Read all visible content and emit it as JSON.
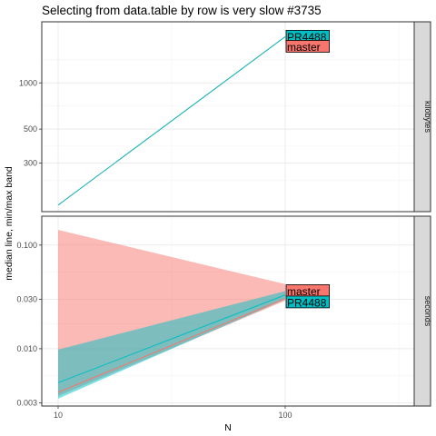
{
  "chart_data": {
    "type": "line",
    "title": "Selecting from data.table by row is very slow #3735",
    "xlabel": "N",
    "ylabel": "median line, min/max band",
    "x_scale": "log10",
    "xlim": [
      10,
      400
    ],
    "x_ticks": [
      10,
      100
    ],
    "x_tick_labels": [
      "10",
      "100"
    ],
    "grid": true,
    "legend": "direct labels",
    "colors": {
      "master": "#f8766d",
      "PR4488": "#00bfc4"
    },
    "panels": [
      {
        "strip_label": "kilobytes",
        "y_scale": "log10",
        "ylim": [
          145,
          2500
        ],
        "y_ticks": [
          300,
          500,
          1000
        ],
        "y_tick_labels": [
          "300",
          "500",
          "1000"
        ],
        "series": [
          {
            "name": "master",
            "x": [
              10,
              100
            ],
            "median": [
              160,
              2000
            ],
            "min": [
              160,
              2000
            ],
            "max": [
              160,
              2000
            ]
          },
          {
            "name": "PR4488",
            "x": [
              10,
              100
            ],
            "median": [
              160,
              2000
            ],
            "min": [
              160,
              2000
            ],
            "max": [
              160,
              2000
            ]
          }
        ],
        "direct_labels": [
          {
            "series": "PR4488",
            "text": "PR4488",
            "x": 100,
            "y": 2000
          },
          {
            "series": "master",
            "text": "master",
            "x": 100,
            "y": 1720
          }
        ]
      },
      {
        "strip_label": "seconds",
        "y_scale": "log10",
        "ylim": [
          0.0028,
          0.19
        ],
        "y_ticks": [
          0.003,
          0.01,
          0.03,
          0.1
        ],
        "y_tick_labels": [
          "0.003",
          "0.010",
          "0.030",
          "0.100"
        ],
        "series": [
          {
            "name": "master",
            "x": [
              10,
              100
            ],
            "median": [
              0.0038,
              0.0305
            ],
            "min": [
              0.0035,
              0.029
            ],
            "max": [
              0.14,
              0.042
            ]
          },
          {
            "name": "PR4488",
            "x": [
              10,
              100
            ],
            "median": [
              0.0047,
              0.033
            ],
            "min": [
              0.0033,
              0.03
            ],
            "max": [
              0.0098,
              0.036
            ]
          }
        ],
        "direct_labels": [
          {
            "series": "master",
            "text": "master",
            "x": 100,
            "y": 0.036
          },
          {
            "series": "PR4488",
            "text": "PR4488",
            "x": 100,
            "y": 0.028
          }
        ]
      }
    ]
  }
}
